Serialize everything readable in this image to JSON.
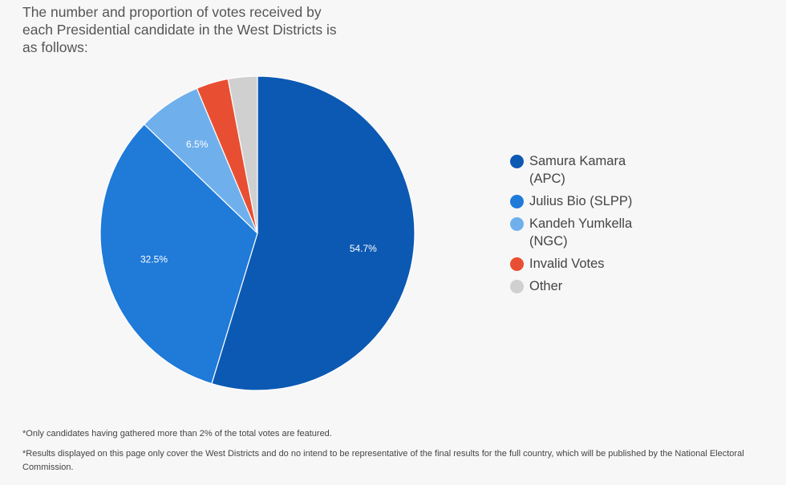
{
  "title": "The number and proportion of votes received by each Presidential candidate in the West Districts is as follows:",
  "chart_data": {
    "type": "pie",
    "title": "The number and proportion of votes received by each Presidential candidate in the West Districts is as follows:",
    "slices": [
      {
        "name": "Samura Kamara (APC)",
        "value": 54.7,
        "label": "54.7%",
        "color": "#0c59b3"
      },
      {
        "name": "Julius Bio (SLPP)",
        "value": 32.5,
        "label": "32.5%",
        "color": "#1f7ad8"
      },
      {
        "name": "Kandeh Yumkella (NGC)",
        "value": 6.5,
        "label": "6.5%",
        "color": "#6fb0ec"
      },
      {
        "name": "Invalid Votes",
        "value": 3.3,
        "label": "",
        "color": "#e84f32"
      },
      {
        "name": "Other",
        "value": 3.0,
        "label": "",
        "color": "#d0d0d0"
      }
    ],
    "legend_position": "right"
  },
  "legend": [
    {
      "label": "Samura Kamara (APC)",
      "color": "#0c59b3"
    },
    {
      "label": "Julius Bio (SLPP)",
      "color": "#1f7ad8"
    },
    {
      "label": "Kandeh Yumkella (NGC)",
      "color": "#6fb0ec"
    },
    {
      "label": "Invalid Votes",
      "color": "#e84f32"
    },
    {
      "label": "Other",
      "color": "#d0d0d0"
    }
  ],
  "footnotes": {
    "note1": "*Only candidates having gathered more than 2% of the total votes are featured.",
    "note2": "*Results displayed on this page only cover the West Districts and do no intend to be representative of the final results for the full country, which will be published by the National Electoral Commission."
  }
}
